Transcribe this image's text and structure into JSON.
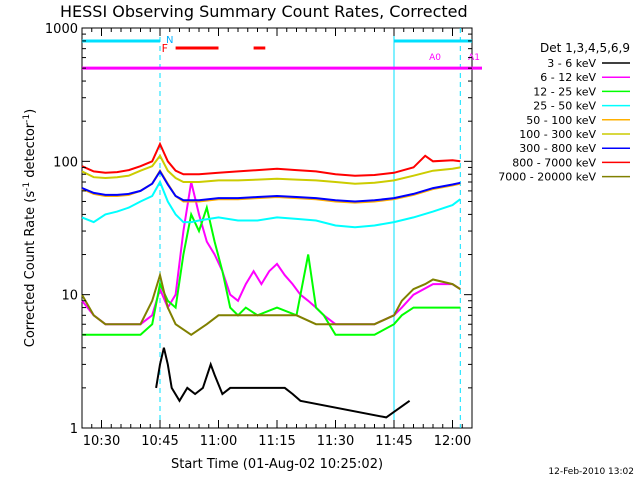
{
  "chart_data": {
    "type": "line",
    "title": "HESSI Observing Summary Count Rates, Corrected",
    "xlabel": "Start Time (01-Aug-02 10:25:02)",
    "ylabel_main": "Corrected Count Rate (s",
    "ylabel_sup1": "-1",
    "ylabel_mid": " detector",
    "ylabel_sup2": "-1",
    "ylabel_end": ")",
    "y_scale": "log",
    "ylim": [
      1,
      1000
    ],
    "xlim_minutes": [
      0,
      100
    ],
    "x_ticks": [
      {
        "label": "10:30",
        "min": 5
      },
      {
        "label": "10:45",
        "min": 20
      },
      {
        "label": "11:00",
        "min": 35
      },
      {
        "label": "11:15",
        "min": 50
      },
      {
        "label": "11:30",
        "min": 65
      },
      {
        "label": "11:45",
        "min": 80
      },
      {
        "label": "12:00",
        "min": 95
      }
    ],
    "y_ticks": [
      {
        "label": "1",
        "value": 1
      },
      {
        "label": "10",
        "value": 10
      },
      {
        "label": "100",
        "value": 100
      },
      {
        "label": "1000",
        "value": 1000
      }
    ],
    "legend_title": "Det 1,3,4,5,6,9",
    "legend_placement": "right",
    "series": [
      {
        "name": "3 - 6 keV",
        "color": "#000000",
        "points": [
          [
            19,
            2
          ],
          [
            20,
            3
          ],
          [
            21,
            4
          ],
          [
            22,
            3
          ],
          [
            23,
            2
          ],
          [
            25,
            1.6
          ],
          [
            27,
            2
          ],
          [
            29,
            1.8
          ],
          [
            31,
            2
          ],
          [
            33,
            3
          ],
          [
            34,
            2.5
          ],
          [
            36,
            1.8
          ],
          [
            38,
            2
          ],
          [
            40,
            2
          ],
          [
            42,
            2
          ],
          [
            44,
            2
          ],
          [
            46,
            2
          ],
          [
            48,
            2
          ],
          [
            50,
            2
          ],
          [
            52,
            2
          ],
          [
            54,
            1.8
          ],
          [
            56,
            1.6
          ],
          [
            78,
            1.2
          ],
          [
            84,
            1.6
          ]
        ]
      },
      {
        "name": "6 - 12 keV",
        "color": "#ff00ff",
        "points": [
          [
            0,
            9
          ],
          [
            3,
            7
          ],
          [
            6,
            6
          ],
          [
            9,
            6
          ],
          [
            12,
            6
          ],
          [
            15,
            6
          ],
          [
            18,
            7
          ],
          [
            20,
            11
          ],
          [
            22,
            8
          ],
          [
            24,
            10
          ],
          [
            26,
            30
          ],
          [
            28,
            70
          ],
          [
            30,
            40
          ],
          [
            32,
            25
          ],
          [
            34,
            20
          ],
          [
            36,
            15
          ],
          [
            38,
            10
          ],
          [
            40,
            9
          ],
          [
            42,
            12
          ],
          [
            44,
            15
          ],
          [
            46,
            12
          ],
          [
            48,
            15
          ],
          [
            50,
            17
          ],
          [
            52,
            14
          ],
          [
            54,
            12
          ],
          [
            56,
            10
          ],
          [
            58,
            9
          ],
          [
            60,
            8
          ],
          [
            62,
            7
          ],
          [
            65,
            6
          ],
          [
            70,
            6
          ],
          [
            75,
            6
          ],
          [
            80,
            7
          ],
          [
            82,
            8
          ],
          [
            85,
            10
          ],
          [
            90,
            12
          ],
          [
            95,
            12
          ],
          [
            97,
            11
          ]
        ]
      },
      {
        "name": "12 - 25 keV",
        "color": "#00ff00",
        "points": [
          [
            0,
            5
          ],
          [
            5,
            5
          ],
          [
            10,
            5
          ],
          [
            15,
            5
          ],
          [
            18,
            6
          ],
          [
            20,
            12
          ],
          [
            22,
            9
          ],
          [
            24,
            8
          ],
          [
            26,
            20
          ],
          [
            28,
            40
          ],
          [
            30,
            30
          ],
          [
            32,
            45
          ],
          [
            34,
            25
          ],
          [
            36,
            15
          ],
          [
            38,
            8
          ],
          [
            40,
            7
          ],
          [
            42,
            8
          ],
          [
            45,
            7
          ],
          [
            50,
            8
          ],
          [
            55,
            7
          ],
          [
            58,
            20
          ],
          [
            60,
            8
          ],
          [
            62,
            7
          ],
          [
            65,
            5
          ],
          [
            70,
            5
          ],
          [
            75,
            5
          ],
          [
            80,
            6
          ],
          [
            82,
            7
          ],
          [
            85,
            8
          ],
          [
            88,
            8
          ],
          [
            90,
            8
          ],
          [
            95,
            8
          ],
          [
            97,
            8
          ]
        ]
      },
      {
        "name": "25 - 50 keV",
        "color": "#00ffff",
        "points": [
          [
            0,
            38
          ],
          [
            3,
            35
          ],
          [
            6,
            40
          ],
          [
            9,
            42
          ],
          [
            12,
            45
          ],
          [
            15,
            50
          ],
          [
            18,
            55
          ],
          [
            20,
            70
          ],
          [
            22,
            50
          ],
          [
            24,
            40
          ],
          [
            26,
            35
          ],
          [
            28,
            35
          ],
          [
            30,
            36
          ],
          [
            35,
            38
          ],
          [
            40,
            36
          ],
          [
            45,
            36
          ],
          [
            50,
            38
          ],
          [
            55,
            37
          ],
          [
            60,
            36
          ],
          [
            65,
            33
          ],
          [
            70,
            32
          ],
          [
            75,
            33
          ],
          [
            80,
            35
          ],
          [
            85,
            38
          ],
          [
            90,
            42
          ],
          [
            95,
            47
          ],
          [
            97,
            52
          ]
        ]
      },
      {
        "name": "50 - 100 keV",
        "color": "#ffb000",
        "points": [
          [
            0,
            62
          ],
          [
            3,
            57
          ],
          [
            6,
            55
          ],
          [
            9,
            55
          ],
          [
            12,
            56
          ],
          [
            15,
            60
          ],
          [
            18,
            68
          ],
          [
            20,
            85
          ],
          [
            22,
            68
          ],
          [
            24,
            55
          ],
          [
            26,
            50
          ],
          [
            30,
            50
          ],
          [
            35,
            52
          ],
          [
            40,
            52
          ],
          [
            45,
            53
          ],
          [
            50,
            54
          ],
          [
            55,
            53
          ],
          [
            60,
            52
          ],
          [
            65,
            50
          ],
          [
            70,
            49
          ],
          [
            75,
            50
          ],
          [
            80,
            52
          ],
          [
            85,
            56
          ],
          [
            90,
            62
          ],
          [
            95,
            66
          ],
          [
            97,
            68
          ]
        ]
      },
      {
        "name": "100 - 300 keV",
        "color": "#cccc00",
        "points": [
          [
            0,
            84
          ],
          [
            3,
            76
          ],
          [
            6,
            75
          ],
          [
            9,
            76
          ],
          [
            12,
            78
          ],
          [
            15,
            85
          ],
          [
            18,
            92
          ],
          [
            20,
            110
          ],
          [
            22,
            85
          ],
          [
            24,
            75
          ],
          [
            26,
            70
          ],
          [
            30,
            70
          ],
          [
            35,
            72
          ],
          [
            40,
            72
          ],
          [
            45,
            73
          ],
          [
            50,
            74
          ],
          [
            55,
            73
          ],
          [
            60,
            72
          ],
          [
            65,
            70
          ],
          [
            70,
            68
          ],
          [
            75,
            69
          ],
          [
            80,
            72
          ],
          [
            85,
            78
          ],
          [
            90,
            85
          ],
          [
            95,
            88
          ],
          [
            97,
            90
          ]
        ]
      },
      {
        "name": "300 - 800 keV",
        "color": "#0000ff",
        "points": [
          [
            0,
            63
          ],
          [
            3,
            58
          ],
          [
            6,
            56
          ],
          [
            9,
            56
          ],
          [
            12,
            57
          ],
          [
            15,
            60
          ],
          [
            18,
            68
          ],
          [
            20,
            84
          ],
          [
            22,
            67
          ],
          [
            24,
            55
          ],
          [
            26,
            51
          ],
          [
            30,
            51
          ],
          [
            35,
            53
          ],
          [
            40,
            53
          ],
          [
            45,
            54
          ],
          [
            50,
            55
          ],
          [
            55,
            54
          ],
          [
            60,
            53
          ],
          [
            65,
            51
          ],
          [
            70,
            50
          ],
          [
            75,
            51
          ],
          [
            80,
            53
          ],
          [
            85,
            57
          ],
          [
            90,
            63
          ],
          [
            95,
            67
          ],
          [
            97,
            69
          ]
        ]
      },
      {
        "name": "800 - 7000 keV",
        "color": "#ff0000",
        "points": [
          [
            0,
            92
          ],
          [
            3,
            84
          ],
          [
            6,
            82
          ],
          [
            9,
            83
          ],
          [
            12,
            86
          ],
          [
            15,
            92
          ],
          [
            18,
            100
          ],
          [
            20,
            135
          ],
          [
            22,
            100
          ],
          [
            24,
            85
          ],
          [
            26,
            80
          ],
          [
            30,
            80
          ],
          [
            35,
            82
          ],
          [
            40,
            84
          ],
          [
            45,
            86
          ],
          [
            50,
            88
          ],
          [
            55,
            86
          ],
          [
            60,
            84
          ],
          [
            65,
            80
          ],
          [
            70,
            78
          ],
          [
            75,
            79
          ],
          [
            80,
            82
          ],
          [
            85,
            90
          ],
          [
            88,
            110
          ],
          [
            90,
            100
          ],
          [
            95,
            102
          ],
          [
            97,
            100
          ]
        ]
      },
      {
        "name": "7000 - 20000 keV",
        "color": "#808000",
        "points": [
          [
            0,
            10
          ],
          [
            3,
            7
          ],
          [
            6,
            6
          ],
          [
            9,
            6
          ],
          [
            12,
            6
          ],
          [
            15,
            6
          ],
          [
            18,
            9
          ],
          [
            20,
            14
          ],
          [
            22,
            8
          ],
          [
            24,
            6
          ],
          [
            28,
            5
          ],
          [
            32,
            6
          ],
          [
            35,
            7
          ],
          [
            40,
            7
          ],
          [
            45,
            7
          ],
          [
            50,
            7
          ],
          [
            55,
            7
          ],
          [
            60,
            6
          ],
          [
            65,
            6
          ],
          [
            70,
            6
          ],
          [
            75,
            6
          ],
          [
            80,
            7
          ],
          [
            82,
            9
          ],
          [
            85,
            11
          ],
          [
            88,
            12
          ],
          [
            90,
            13
          ],
          [
            95,
            12
          ],
          [
            97,
            11
          ]
        ]
      }
    ],
    "attenuator": {
      "level": 500,
      "labels": [
        {
          "text": "A0",
          "min": 89,
          "color": "#ff00ff"
        },
        {
          "text": "A1",
          "min": 99,
          "color": "#ff00ff"
        }
      ]
    },
    "night_intervals": [
      [
        0,
        20
      ],
      [
        80,
        100
      ]
    ],
    "night_label": "N",
    "flare_label": "F",
    "flare_intervals": [
      [
        24,
        35
      ],
      [
        44,
        47
      ]
    ],
    "event_lines_minutes": [
      20,
      97
    ],
    "saa_lines_minutes": [
      80
    ]
  },
  "footer": {
    "date": "12-Feb-2010 13:02"
  }
}
